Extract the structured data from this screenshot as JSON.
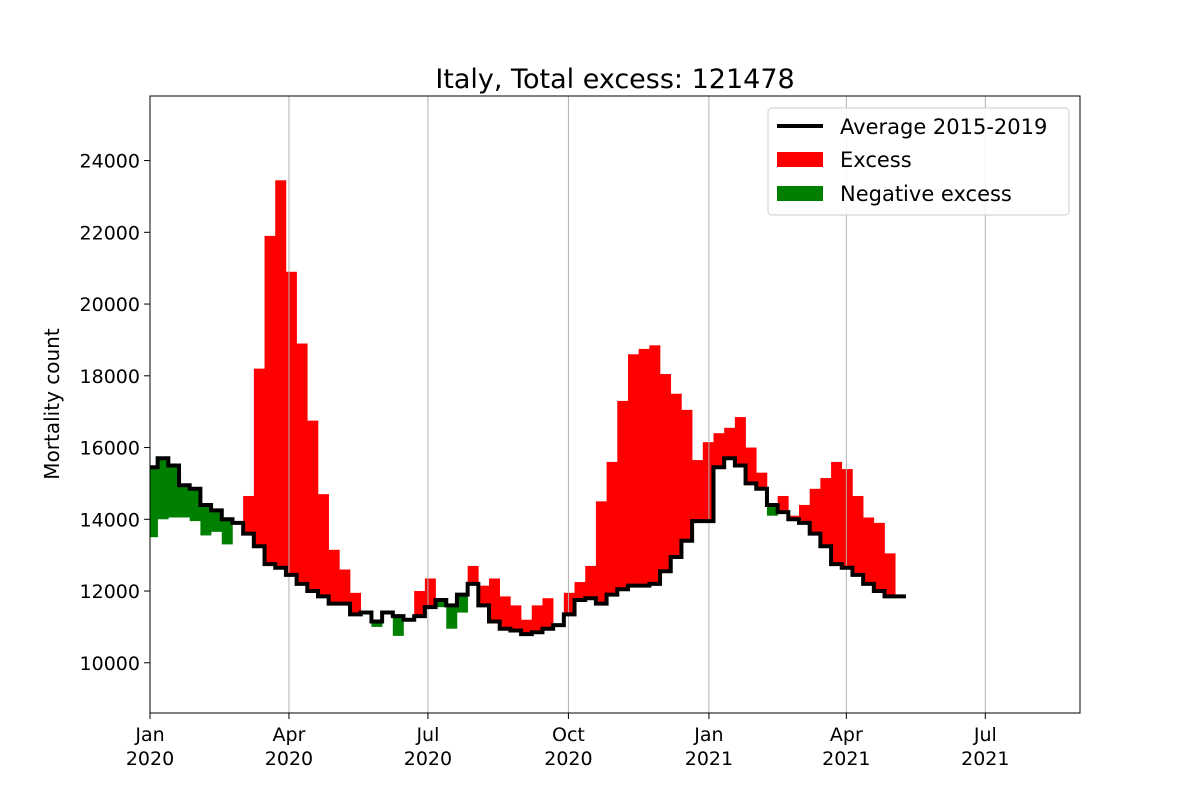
{
  "chart_data": {
    "type": "bar",
    "title": "Italy, Total excess: 121478",
    "xlabel": "",
    "ylabel": "Mortality count",
    "ylim": [
      8600,
      25800
    ],
    "xlim": [
      "2020-01-01",
      "2021-09-01"
    ],
    "yticks": [
      10000,
      12000,
      14000,
      16000,
      18000,
      20000,
      22000,
      24000
    ],
    "xticks": [
      {
        "date": "2020-01-01",
        "label1": "Jan",
        "label2": "2020"
      },
      {
        "date": "2020-04-01",
        "label1": "Apr",
        "label2": "2020"
      },
      {
        "date": "2020-07-01",
        "label1": "Jul",
        "label2": "2020"
      },
      {
        "date": "2020-10-01",
        "label1": "Oct",
        "label2": "2020"
      },
      {
        "date": "2021-01-01",
        "label1": "Jan",
        "label2": "2021"
      },
      {
        "date": "2021-04-01",
        "label1": "Apr",
        "label2": "2021"
      },
      {
        "date": "2021-07-01",
        "label1": "Jul",
        "label2": "2021"
      }
    ],
    "grid": "x",
    "legend_position": "top-right",
    "colors": {
      "average": "#000000",
      "excess": "#ff0000",
      "negative": "#008000"
    },
    "series": [
      {
        "name": "Average 2015-2019",
        "week_start": [
          "2019-12-30",
          "2020-01-06",
          "2020-01-13",
          "2020-01-20",
          "2020-01-27",
          "2020-02-03",
          "2020-02-10",
          "2020-02-17",
          "2020-02-24",
          "2020-03-02",
          "2020-03-09",
          "2020-03-16",
          "2020-03-23",
          "2020-03-30",
          "2020-04-06",
          "2020-04-13",
          "2020-04-20",
          "2020-04-27",
          "2020-05-04",
          "2020-05-11",
          "2020-05-18",
          "2020-05-25",
          "2020-06-01",
          "2020-06-08",
          "2020-06-15",
          "2020-06-22",
          "2020-06-29",
          "2020-07-06",
          "2020-07-13",
          "2020-07-20",
          "2020-07-27",
          "2020-08-03",
          "2020-08-10",
          "2020-08-17",
          "2020-08-24",
          "2020-08-31",
          "2020-09-07",
          "2020-09-14",
          "2020-09-21",
          "2020-09-28",
          "2020-10-05",
          "2020-10-12",
          "2020-10-19",
          "2020-10-26",
          "2020-11-02",
          "2020-11-09",
          "2020-11-16",
          "2020-11-23",
          "2020-11-30",
          "2020-12-07",
          "2020-12-14",
          "2020-12-21",
          "2020-12-28",
          "2021-01-04",
          "2021-01-11",
          "2021-01-18",
          "2021-01-25",
          "2021-02-01",
          "2021-02-08",
          "2021-02-15",
          "2021-02-22",
          "2021-03-01",
          "2021-03-08",
          "2021-03-15",
          "2021-03-22",
          "2021-03-29",
          "2021-04-05",
          "2021-04-12",
          "2021-04-19",
          "2021-04-26",
          "2021-05-03"
        ],
        "values": [
          15450,
          15700,
          15500,
          14950,
          14850,
          14400,
          14250,
          14000,
          13900,
          13600,
          13250,
          12750,
          12650,
          12450,
          12200,
          12000,
          11850,
          11650,
          11650,
          11350,
          11400,
          11150,
          11400,
          11300,
          11200,
          11300,
          11550,
          11750,
          11600,
          11900,
          12200,
          11600,
          11150,
          10950,
          10900,
          10800,
          10850,
          10950,
          11050,
          11350,
          11750,
          11800,
          11650,
          11900,
          12050,
          12150,
          12150,
          12200,
          12550,
          12950,
          13400,
          13950,
          13950,
          15450,
          15700,
          15500,
          15000,
          14850,
          14400,
          14200,
          14000,
          13900,
          13600,
          13250,
          12750,
          12650,
          12450,
          12200,
          12000,
          11850,
          11850
        ]
      },
      {
        "name": "Excess",
        "values": [
          13500,
          14000,
          14050,
          14050,
          13950,
          13550,
          13650,
          13300,
          13850,
          14650,
          18200,
          21900,
          23450,
          20900,
          18900,
          16750,
          14700,
          13150,
          12600,
          11950,
          null,
          11000,
          11350,
          10750,
          11150,
          12000,
          12350,
          11550,
          10950,
          11400,
          12700,
          12150,
          12350,
          11850,
          11600,
          11200,
          11600,
          11800,
          11050,
          11950,
          12250,
          12700,
          14500,
          15600,
          17300,
          18600,
          18750,
          18850,
          18050,
          17500,
          17050,
          15650,
          16150,
          16400,
          16550,
          16850,
          16000,
          15300,
          14100,
          14650,
          14100,
          14400,
          14850,
          15150,
          15600,
          15400,
          14650,
          14050,
          13900,
          13050,
          null
        ]
      },
      {
        "name": "Negative excess"
      }
    ]
  }
}
